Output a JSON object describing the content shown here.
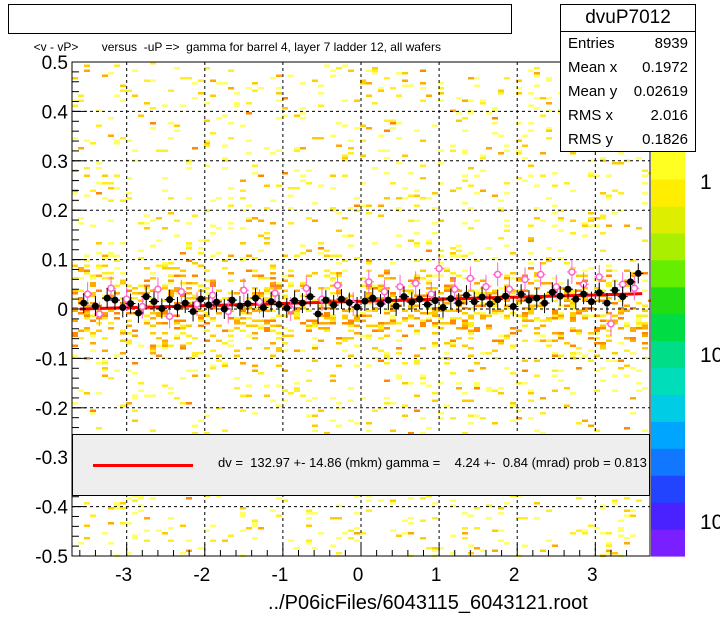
{
  "header": {
    "title": "<v - vP>       versus  -uP =>  gamma for barrel 4, layer 7 ladder 12, all wafers"
  },
  "stats": {
    "name": "dvuP7012",
    "rows": [
      {
        "label": "Entries",
        "value": "8939"
      },
      {
        "label": "Mean x",
        "value": "0.1972"
      },
      {
        "label": "Mean y",
        "value": "0.02619"
      },
      {
        "label": "RMS x",
        "value": "2.016"
      },
      {
        "label": "RMS y",
        "value": "0.1826"
      }
    ]
  },
  "legend": {
    "text": "dv =  132.97 +- 14.86 (mkm) gamma =    4.24 +-  0.84 (mrad) prob = 0.813",
    "color": "#ff0000"
  },
  "footer": {
    "filename": "../P06icFiles/6043115_6043121.root"
  },
  "colors": {
    "fit_line": "#ff0000",
    "points_black": "#000000",
    "points_open": "#ff66cc"
  },
  "chart_data": {
    "type": "scatter",
    "title": "<v - vP>       versus  -uP =>  gamma for barrel 4, layer 7 ladder 12, all wafers",
    "xlim": [
      -3.7,
      3.7
    ],
    "ylim": [
      -0.5,
      0.5
    ],
    "x_ticks": [
      "-3",
      "-2",
      "-1",
      "0",
      "1",
      "2",
      "3"
    ],
    "y_ticks": [
      "-0.5",
      "-0.4",
      "-0.3",
      "-0.2",
      "-0.1",
      "0",
      "0.1",
      "0.2",
      "0.3",
      "0.4",
      "0.5"
    ],
    "z_scale_labels": [
      "1",
      "10",
      "10"
    ],
    "grid": true,
    "log_z": true,
    "fit_line": {
      "x": [
        -3.6,
        3.6
      ],
      "y": [
        0.0,
        0.031
      ]
    },
    "series": [
      {
        "marker": "filled-circle",
        "points": [
          [
            -3.55,
            0.012
          ],
          [
            -3.4,
            0.006
          ],
          [
            -3.25,
            0.022
          ],
          [
            -3.15,
            0.018
          ],
          [
            -3.05,
            0.003
          ],
          [
            -2.95,
            0.011
          ],
          [
            -2.85,
            -0.008
          ],
          [
            -2.75,
            0.025
          ],
          [
            -2.65,
            0.015
          ],
          [
            -2.55,
            0.001
          ],
          [
            -2.45,
            0.019
          ],
          [
            -2.35,
            0.004
          ],
          [
            -2.25,
            0.012
          ],
          [
            -2.15,
            -0.005
          ],
          [
            -2.05,
            0.02
          ],
          [
            -1.95,
            0.008
          ],
          [
            -1.85,
            0.014
          ],
          [
            -1.75,
            0.0
          ],
          [
            -1.65,
            0.018
          ],
          [
            -1.55,
            0.006
          ],
          [
            -1.45,
            0.011
          ],
          [
            -1.35,
            0.022
          ],
          [
            -1.25,
            0.003
          ],
          [
            -1.15,
            0.015
          ],
          [
            -1.05,
            0.009
          ],
          [
            -0.95,
            0.002
          ],
          [
            -0.85,
            0.017
          ],
          [
            -0.75,
            0.012
          ],
          [
            -0.65,
            0.025
          ],
          [
            -0.55,
            -0.01
          ],
          [
            -0.45,
            0.018
          ],
          [
            -0.35,
            0.008
          ],
          [
            -0.25,
            0.02
          ],
          [
            -0.15,
            0.013
          ],
          [
            -0.05,
            0.004
          ],
          [
            0.05,
            0.016
          ],
          [
            0.15,
            0.022
          ],
          [
            0.25,
            0.01
          ],
          [
            0.35,
            0.018
          ],
          [
            0.45,
            0.006
          ],
          [
            0.55,
            0.025
          ],
          [
            0.65,
            0.014
          ],
          [
            0.75,
            0.02
          ],
          [
            0.85,
            0.009
          ],
          [
            0.95,
            0.017
          ],
          [
            1.05,
            0.003
          ],
          [
            1.15,
            0.021
          ],
          [
            1.25,
            0.012
          ],
          [
            1.35,
            0.028
          ],
          [
            1.45,
            0.015
          ],
          [
            1.55,
            0.024
          ],
          [
            1.65,
            0.01
          ],
          [
            1.75,
            0.019
          ],
          [
            1.85,
            0.026
          ],
          [
            1.95,
            0.005
          ],
          [
            2.05,
            0.03
          ],
          [
            2.15,
            0.018
          ],
          [
            2.25,
            0.022
          ],
          [
            2.35,
            0.012
          ],
          [
            2.45,
            0.034
          ],
          [
            2.55,
            0.026
          ],
          [
            2.65,
            0.04
          ],
          [
            2.75,
            0.02
          ],
          [
            2.85,
            0.03
          ],
          [
            2.95,
            0.015
          ],
          [
            3.05,
            0.033
          ],
          [
            3.15,
            0.012
          ],
          [
            3.25,
            0.038
          ],
          [
            3.35,
            0.025
          ],
          [
            3.45,
            0.055
          ],
          [
            3.55,
            0.072
          ]
        ]
      },
      {
        "marker": "open-circle",
        "points": [
          [
            -3.5,
            0.03
          ],
          [
            -3.35,
            -0.01
          ],
          [
            -3.2,
            0.042
          ],
          [
            -3.0,
            0.02
          ],
          [
            -2.8,
            0.005
          ],
          [
            -2.6,
            0.04
          ],
          [
            -2.45,
            -0.015
          ],
          [
            -2.3,
            0.035
          ],
          [
            -2.1,
            0.01
          ],
          [
            -1.9,
            0.028
          ],
          [
            -1.7,
            -0.005
          ],
          [
            -1.5,
            0.038
          ],
          [
            -1.3,
            0.015
          ],
          [
            -1.1,
            0.032
          ],
          [
            -0.9,
            0.0
          ],
          [
            -0.7,
            0.042
          ],
          [
            -0.5,
            0.02
          ],
          [
            -0.3,
            0.048
          ],
          [
            -0.1,
            0.01
          ],
          [
            0.1,
            0.055
          ],
          [
            0.3,
            0.035
          ],
          [
            0.5,
            0.045
          ],
          [
            0.7,
            0.052
          ],
          [
            0.9,
            0.03
          ],
          [
            1.0,
            0.082
          ],
          [
            1.2,
            0.04
          ],
          [
            1.4,
            0.062
          ],
          [
            1.6,
            0.045
          ],
          [
            1.75,
            0.07
          ],
          [
            1.9,
            0.04
          ],
          [
            2.1,
            0.06
          ],
          [
            2.3,
            0.07
          ],
          [
            2.5,
            0.045
          ],
          [
            2.7,
            0.075
          ],
          [
            2.85,
            0.05
          ],
          [
            3.05,
            0.065
          ],
          [
            3.2,
            -0.03
          ],
          [
            3.35,
            0.05
          ],
          [
            3.5,
            0.042
          ]
        ]
      }
    ]
  }
}
